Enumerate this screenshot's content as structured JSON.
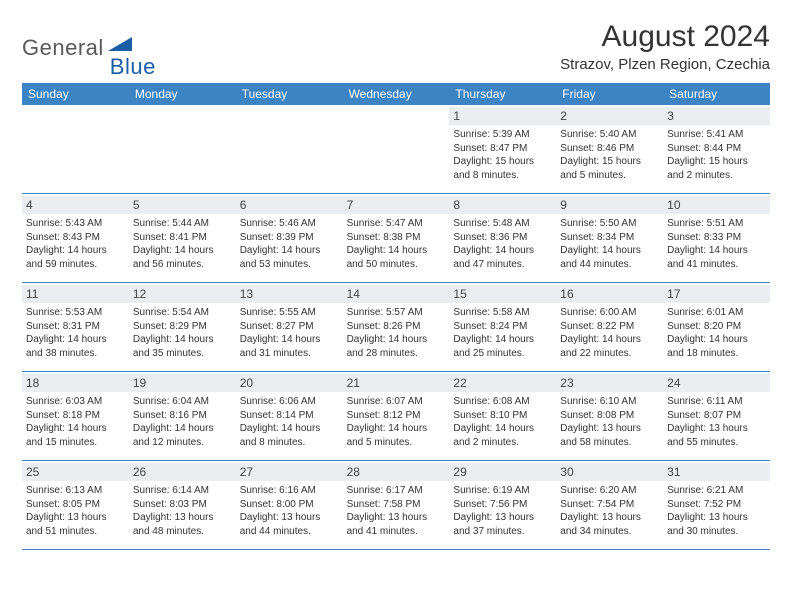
{
  "logo": {
    "general": "General",
    "blue": "Blue",
    "shape_color": "#1a5ea8",
    "general_color": "#5a5a5a"
  },
  "title": {
    "month_year": "August 2024",
    "location": "Strazov, Plzen Region, Czechia"
  },
  "colors": {
    "header_bg": "#3d84c4",
    "header_fg": "#ffffff",
    "daynum_bg": "#eaedf0",
    "border": "#3d84c4",
    "text": "#333333"
  },
  "dayNames": [
    "Sunday",
    "Monday",
    "Tuesday",
    "Wednesday",
    "Thursday",
    "Friday",
    "Saturday"
  ],
  "weeks": [
    [
      {
        "empty": true
      },
      {
        "empty": true
      },
      {
        "empty": true
      },
      {
        "empty": true
      },
      {
        "day": "1",
        "sunrise": "Sunrise: 5:39 AM",
        "sunset": "Sunset: 8:47 PM",
        "daylight": "Daylight: 15 hours and 8 minutes."
      },
      {
        "day": "2",
        "sunrise": "Sunrise: 5:40 AM",
        "sunset": "Sunset: 8:46 PM",
        "daylight": "Daylight: 15 hours and 5 minutes."
      },
      {
        "day": "3",
        "sunrise": "Sunrise: 5:41 AM",
        "sunset": "Sunset: 8:44 PM",
        "daylight": "Daylight: 15 hours and 2 minutes."
      }
    ],
    [
      {
        "day": "4",
        "sunrise": "Sunrise: 5:43 AM",
        "sunset": "Sunset: 8:43 PM",
        "daylight": "Daylight: 14 hours and 59 minutes."
      },
      {
        "day": "5",
        "sunrise": "Sunrise: 5:44 AM",
        "sunset": "Sunset: 8:41 PM",
        "daylight": "Daylight: 14 hours and 56 minutes."
      },
      {
        "day": "6",
        "sunrise": "Sunrise: 5:46 AM",
        "sunset": "Sunset: 8:39 PM",
        "daylight": "Daylight: 14 hours and 53 minutes."
      },
      {
        "day": "7",
        "sunrise": "Sunrise: 5:47 AM",
        "sunset": "Sunset: 8:38 PM",
        "daylight": "Daylight: 14 hours and 50 minutes."
      },
      {
        "day": "8",
        "sunrise": "Sunrise: 5:48 AM",
        "sunset": "Sunset: 8:36 PM",
        "daylight": "Daylight: 14 hours and 47 minutes."
      },
      {
        "day": "9",
        "sunrise": "Sunrise: 5:50 AM",
        "sunset": "Sunset: 8:34 PM",
        "daylight": "Daylight: 14 hours and 44 minutes."
      },
      {
        "day": "10",
        "sunrise": "Sunrise: 5:51 AM",
        "sunset": "Sunset: 8:33 PM",
        "daylight": "Daylight: 14 hours and 41 minutes."
      }
    ],
    [
      {
        "day": "11",
        "sunrise": "Sunrise: 5:53 AM",
        "sunset": "Sunset: 8:31 PM",
        "daylight": "Daylight: 14 hours and 38 minutes."
      },
      {
        "day": "12",
        "sunrise": "Sunrise: 5:54 AM",
        "sunset": "Sunset: 8:29 PM",
        "daylight": "Daylight: 14 hours and 35 minutes."
      },
      {
        "day": "13",
        "sunrise": "Sunrise: 5:55 AM",
        "sunset": "Sunset: 8:27 PM",
        "daylight": "Daylight: 14 hours and 31 minutes."
      },
      {
        "day": "14",
        "sunrise": "Sunrise: 5:57 AM",
        "sunset": "Sunset: 8:26 PM",
        "daylight": "Daylight: 14 hours and 28 minutes."
      },
      {
        "day": "15",
        "sunrise": "Sunrise: 5:58 AM",
        "sunset": "Sunset: 8:24 PM",
        "daylight": "Daylight: 14 hours and 25 minutes."
      },
      {
        "day": "16",
        "sunrise": "Sunrise: 6:00 AM",
        "sunset": "Sunset: 8:22 PM",
        "daylight": "Daylight: 14 hours and 22 minutes."
      },
      {
        "day": "17",
        "sunrise": "Sunrise: 6:01 AM",
        "sunset": "Sunset: 8:20 PM",
        "daylight": "Daylight: 14 hours and 18 minutes."
      }
    ],
    [
      {
        "day": "18",
        "sunrise": "Sunrise: 6:03 AM",
        "sunset": "Sunset: 8:18 PM",
        "daylight": "Daylight: 14 hours and 15 minutes."
      },
      {
        "day": "19",
        "sunrise": "Sunrise: 6:04 AM",
        "sunset": "Sunset: 8:16 PM",
        "daylight": "Daylight: 14 hours and 12 minutes."
      },
      {
        "day": "20",
        "sunrise": "Sunrise: 6:06 AM",
        "sunset": "Sunset: 8:14 PM",
        "daylight": "Daylight: 14 hours and 8 minutes."
      },
      {
        "day": "21",
        "sunrise": "Sunrise: 6:07 AM",
        "sunset": "Sunset: 8:12 PM",
        "daylight": "Daylight: 14 hours and 5 minutes."
      },
      {
        "day": "22",
        "sunrise": "Sunrise: 6:08 AM",
        "sunset": "Sunset: 8:10 PM",
        "daylight": "Daylight: 14 hours and 2 minutes."
      },
      {
        "day": "23",
        "sunrise": "Sunrise: 6:10 AM",
        "sunset": "Sunset: 8:08 PM",
        "daylight": "Daylight: 13 hours and 58 minutes."
      },
      {
        "day": "24",
        "sunrise": "Sunrise: 6:11 AM",
        "sunset": "Sunset: 8:07 PM",
        "daylight": "Daylight: 13 hours and 55 minutes."
      }
    ],
    [
      {
        "day": "25",
        "sunrise": "Sunrise: 6:13 AM",
        "sunset": "Sunset: 8:05 PM",
        "daylight": "Daylight: 13 hours and 51 minutes."
      },
      {
        "day": "26",
        "sunrise": "Sunrise: 6:14 AM",
        "sunset": "Sunset: 8:03 PM",
        "daylight": "Daylight: 13 hours and 48 minutes."
      },
      {
        "day": "27",
        "sunrise": "Sunrise: 6:16 AM",
        "sunset": "Sunset: 8:00 PM",
        "daylight": "Daylight: 13 hours and 44 minutes."
      },
      {
        "day": "28",
        "sunrise": "Sunrise: 6:17 AM",
        "sunset": "Sunset: 7:58 PM",
        "daylight": "Daylight: 13 hours and 41 minutes."
      },
      {
        "day": "29",
        "sunrise": "Sunrise: 6:19 AM",
        "sunset": "Sunset: 7:56 PM",
        "daylight": "Daylight: 13 hours and 37 minutes."
      },
      {
        "day": "30",
        "sunrise": "Sunrise: 6:20 AM",
        "sunset": "Sunset: 7:54 PM",
        "daylight": "Daylight: 13 hours and 34 minutes."
      },
      {
        "day": "31",
        "sunrise": "Sunrise: 6:21 AM",
        "sunset": "Sunset: 7:52 PM",
        "daylight": "Daylight: 13 hours and 30 minutes."
      }
    ]
  ]
}
